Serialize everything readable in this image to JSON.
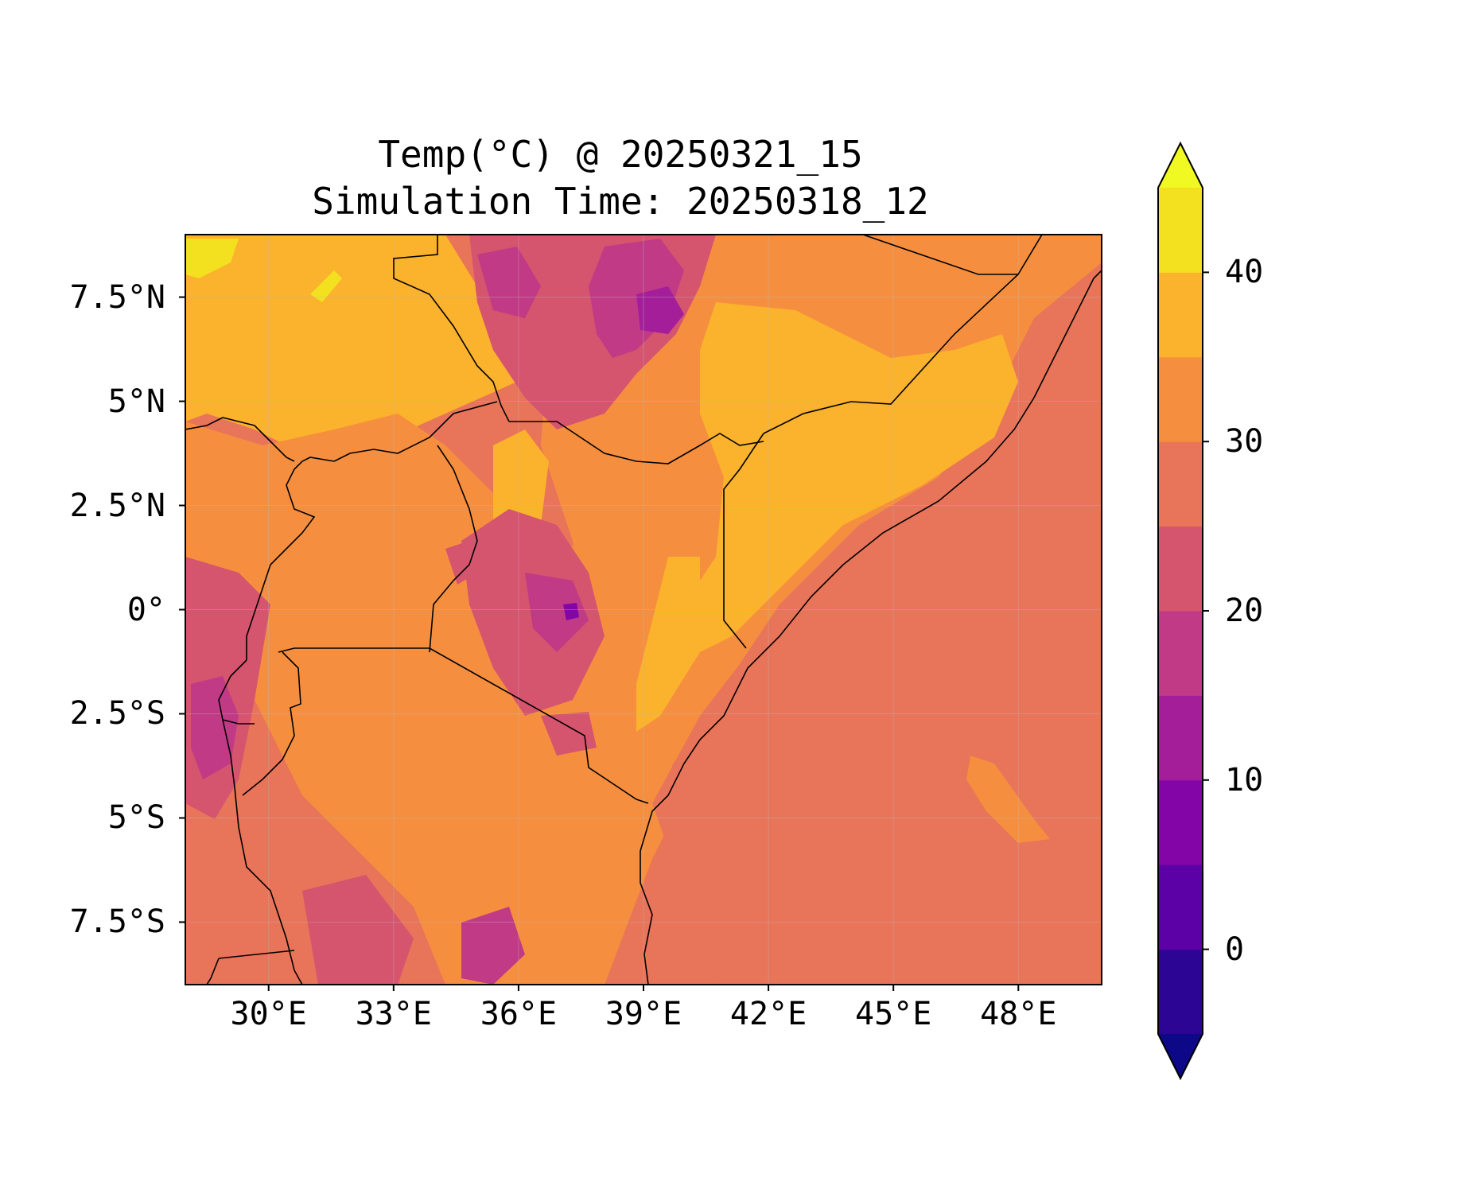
{
  "title": {
    "line1": "Temp(°C) @ 20250321_15",
    "line2": "Simulation Time: 20250318_12"
  },
  "map": {
    "lon_range": [
      28.0,
      50.0
    ],
    "lat_range": [
      -9.0,
      9.0
    ],
    "lon_ticks": [
      {
        "value": 30,
        "label": "30°E"
      },
      {
        "value": 33,
        "label": "33°E"
      },
      {
        "value": 36,
        "label": "36°E"
      },
      {
        "value": 39,
        "label": "39°E"
      },
      {
        "value": 42,
        "label": "42°E"
      },
      {
        "value": 45,
        "label": "45°E"
      },
      {
        "value": 48,
        "label": "48°E"
      }
    ],
    "lat_ticks": [
      {
        "value": 7.5,
        "label": "7.5°N"
      },
      {
        "value": 5,
        "label": "5°N"
      },
      {
        "value": 2.5,
        "label": "2.5°N"
      },
      {
        "value": 0,
        "label": "0°"
      },
      {
        "value": -2.5,
        "label": "2.5°S"
      },
      {
        "value": -5,
        "label": "5°S"
      },
      {
        "value": -7.5,
        "label": "7.5°S"
      }
    ],
    "gridlines": true,
    "coastline_color": "#000000"
  },
  "colorbar": {
    "range": [
      -5,
      45
    ],
    "extend": "both",
    "ticks": [
      {
        "value": 0,
        "label": "0"
      },
      {
        "value": 10,
        "label": "10"
      },
      {
        "value": 20,
        "label": "20"
      },
      {
        "value": 30,
        "label": "30"
      },
      {
        "value": 40,
        "label": "40"
      }
    ],
    "levels": [
      {
        "min": -5,
        "max": 0,
        "color": "#2c0594"
      },
      {
        "min": 0,
        "max": 5,
        "color": "#5c01a6"
      },
      {
        "min": 5,
        "max": 10,
        "color": "#8304a7"
      },
      {
        "min": 10,
        "max": 15,
        "color": "#a41e9a"
      },
      {
        "min": 15,
        "max": 20,
        "color": "#c13a86"
      },
      {
        "min": 20,
        "max": 25,
        "color": "#d5546e"
      },
      {
        "min": 25,
        "max": 30,
        "color": "#e87459"
      },
      {
        "min": 30,
        "max": 35,
        "color": "#f58f3f"
      },
      {
        "min": 35,
        "max": 40,
        "color": "#fbb22c"
      },
      {
        "min": 40,
        "max": 45,
        "color": "#f3e11f"
      }
    ],
    "under_color": "#0d0887",
    "over_color": "#f0f921"
  }
}
